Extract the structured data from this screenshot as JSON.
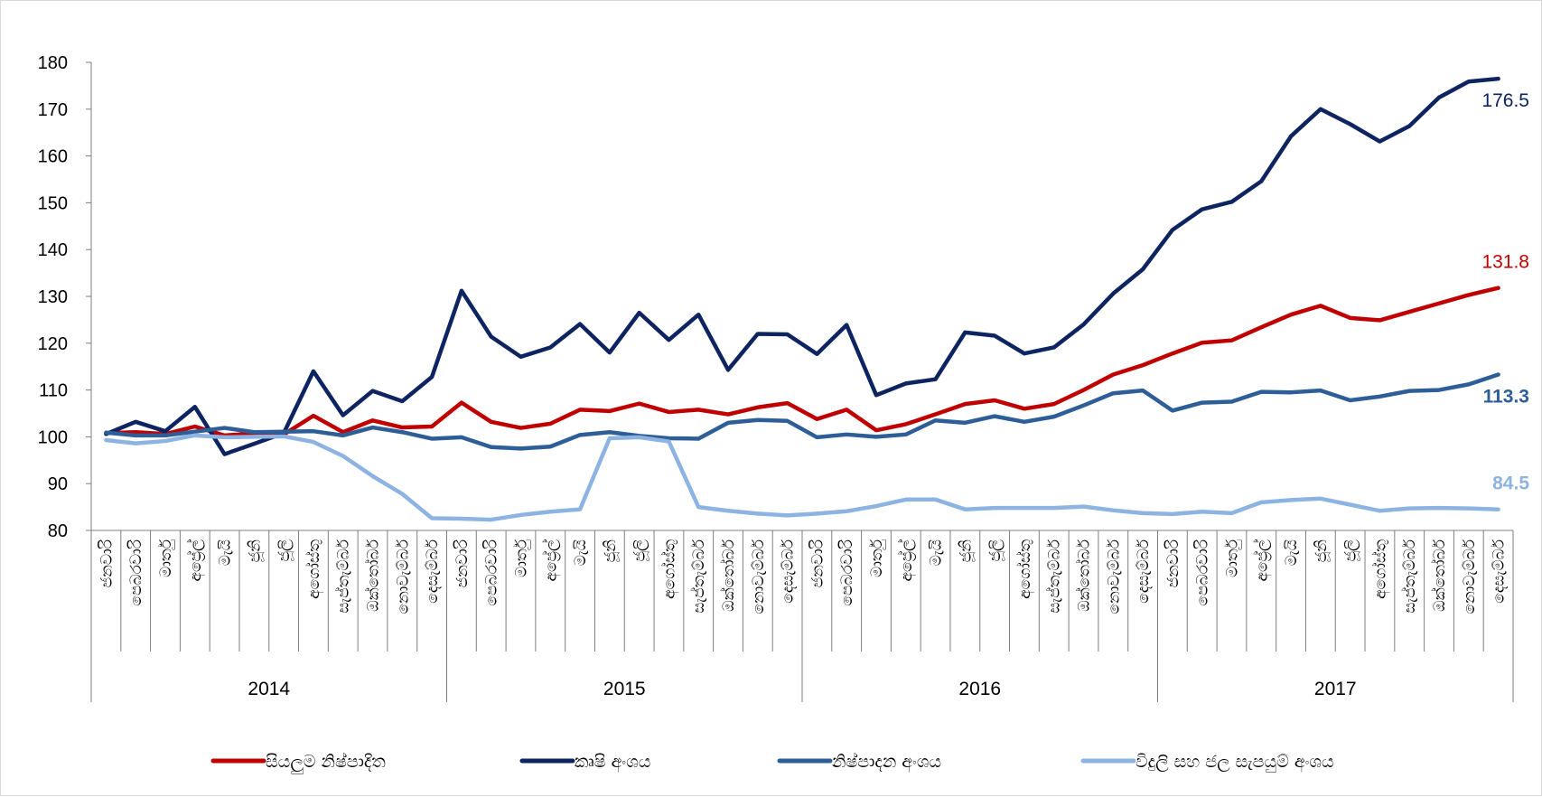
{
  "chart_data": {
    "type": "line",
    "title": "",
    "xlabel": "",
    "ylabel": "",
    "ylim": [
      80,
      180
    ],
    "yticks": [
      80,
      90,
      100,
      110,
      120,
      130,
      140,
      150,
      160,
      170,
      180
    ],
    "grid": false,
    "legend_position": "bottom",
    "years": [
      "2014",
      "2015",
      "2016",
      "2017"
    ],
    "months": [
      "ජනවාරි",
      "පෙබරවාරි",
      "මාර්තු",
      "අප්‍රේල්",
      "මැයි",
      "ජූනි",
      "ජූලි",
      "අගෝස්තු",
      "සැප්තැම්බර්",
      "ඔක්තෝබර්",
      "නොවැම්බර්",
      "දෙසැම්බර්"
    ],
    "series": [
      {
        "name": "සියලුම නිෂ්පාදිත",
        "color": "#c00000",
        "end_label": "131.8",
        "end_label_bold": false,
        "values": [
          100.8,
          101.0,
          100.6,
          102.2,
          100.3,
          100.7,
          100.5,
          104.5,
          101.0,
          103.5,
          102.0,
          102.2,
          107.3,
          103.2,
          101.9,
          102.8,
          105.8,
          105.5,
          107.1,
          105.3,
          105.8,
          104.8,
          106.3,
          107.2,
          103.8,
          105.8,
          101.4,
          102.7,
          104.8,
          107.0,
          107.8,
          106.0,
          107.0,
          110.0,
          113.3,
          115.3,
          117.8,
          120.1,
          120.6,
          123.4,
          126.1,
          128.0,
          125.4,
          124.9,
          126.7,
          128.5,
          130.3,
          131.8
        ]
      },
      {
        "name": "කෘෂි අංශය",
        "color": "#0d2461",
        "end_label": "176.5",
        "end_label_bold": false,
        "values": [
          100.6,
          103.2,
          101.2,
          106.4,
          96.3,
          98.5,
          100.8,
          114.0,
          104.6,
          109.8,
          107.6,
          112.8,
          131.2,
          121.4,
          117.1,
          119.1,
          124.1,
          118.0,
          126.5,
          120.7,
          126.1,
          114.3,
          122.0,
          121.9,
          117.7,
          123.9,
          108.9,
          111.4,
          112.3,
          122.3,
          121.6,
          117.8,
          119.1,
          124.0,
          130.6,
          135.8,
          144.2,
          148.6,
          150.2,
          154.6,
          164.2,
          170.0,
          166.8,
          163.1,
          166.4,
          172.5,
          175.9,
          176.5
        ]
      },
      {
        "name": "නිෂ්පාදන අංශය",
        "color": "#2e5e97",
        "end_label": "113.3",
        "end_label_bold": true,
        "values": [
          100.9,
          100.3,
          100.3,
          101.1,
          101.9,
          101.0,
          101.1,
          101.2,
          100.3,
          102.0,
          101.0,
          99.6,
          99.9,
          97.8,
          97.5,
          97.9,
          100.4,
          101.0,
          100.2,
          99.7,
          99.6,
          103.0,
          103.6,
          103.4,
          99.9,
          100.5,
          100.0,
          100.5,
          103.5,
          103.0,
          104.4,
          103.2,
          104.3,
          106.7,
          109.3,
          109.9,
          105.6,
          107.3,
          107.5,
          109.6,
          109.5,
          109.9,
          107.8,
          108.6,
          109.8,
          110.0,
          111.2,
          113.3
        ]
      },
      {
        "name": "විදුලි සහ ජල සැපයුම් අංශය",
        "color": "#8db3e2",
        "end_label": "84.5",
        "end_label_bold": true,
        "values": [
          99.3,
          98.6,
          99.1,
          100.3,
          99.9,
          100.0,
          100.1,
          98.9,
          95.9,
          91.6,
          87.8,
          82.6,
          82.5,
          82.3,
          83.3,
          84.0,
          84.5,
          99.7,
          99.9,
          99.0,
          85.0,
          84.2,
          83.6,
          83.2,
          83.6,
          84.1,
          85.2,
          86.6,
          86.6,
          84.5,
          84.8,
          84.8,
          84.8,
          85.1,
          84.3,
          83.7,
          83.5,
          84.0,
          83.7,
          86.0,
          86.5,
          86.8,
          85.5,
          84.2,
          84.7,
          84.8,
          84.7,
          84.5
        ]
      }
    ]
  }
}
